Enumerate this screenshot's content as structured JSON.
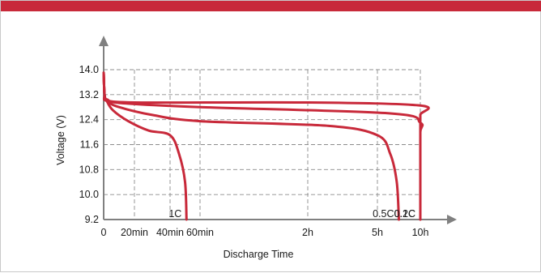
{
  "chart_data": {
    "type": "line",
    "title": "",
    "xlabel": "Discharge Time",
    "ylabel": "Voltage (V)",
    "grid": true,
    "x_ticks": [
      "0",
      "20min",
      "40min",
      "60min",
      "2h",
      "5h",
      "10h"
    ],
    "y_ticks": [
      "9.2",
      "10.0",
      "10.8",
      "11.6",
      "12.4",
      "13.2",
      "14.0"
    ],
    "y_range": [
      9.2,
      14.0
    ],
    "line_color": "#c8293a",
    "series": [
      {
        "name": "1C",
        "points": [
          [
            0,
            13.9
          ],
          [
            0.03,
            13.2
          ],
          [
            0.1,
            13.0
          ],
          [
            0.3,
            12.7
          ],
          [
            0.8,
            12.35
          ],
          [
            1.4,
            12.05
          ],
          [
            2.0,
            11.9
          ],
          [
            2.3,
            11.3
          ],
          [
            2.5,
            10.4
          ],
          [
            2.55,
            9.2
          ]
        ]
      },
      {
        "name": "0.5C",
        "points": [
          [
            0,
            13.9
          ],
          [
            0.03,
            13.2
          ],
          [
            0.1,
            13.0
          ],
          [
            0.5,
            12.8
          ],
          [
            1.5,
            12.55
          ],
          [
            3.0,
            12.35
          ],
          [
            4.3,
            12.2
          ],
          [
            5.0,
            11.9
          ],
          [
            5.3,
            11.3
          ],
          [
            5.45,
            10.4
          ],
          [
            5.5,
            9.2
          ]
        ]
      },
      {
        "name": "0.2C",
        "points": [
          [
            0,
            13.9
          ],
          [
            0.03,
            13.2
          ],
          [
            0.1,
            13.0
          ],
          [
            1.0,
            12.9
          ],
          [
            3.0,
            12.8
          ],
          [
            5.3,
            12.6
          ],
          [
            6.5,
            12.3
          ],
          [
            7.1,
            12.0
          ],
          [
            7.5,
            11.1
          ],
          [
            7.6,
            9.2
          ]
        ]
      },
      {
        "name": "0.1C",
        "points": [
          [
            0,
            13.9
          ],
          [
            0.03,
            13.2
          ],
          [
            0.1,
            13.05
          ],
          [
            1.0,
            12.95
          ],
          [
            4.0,
            12.95
          ],
          [
            6.5,
            12.85
          ],
          [
            7.8,
            12.55
          ],
          [
            8.5,
            12.1
          ],
          [
            8.8,
            11.4
          ],
          [
            9.0,
            10.8
          ],
          [
            9.1,
            9.2
          ]
        ]
      }
    ]
  }
}
